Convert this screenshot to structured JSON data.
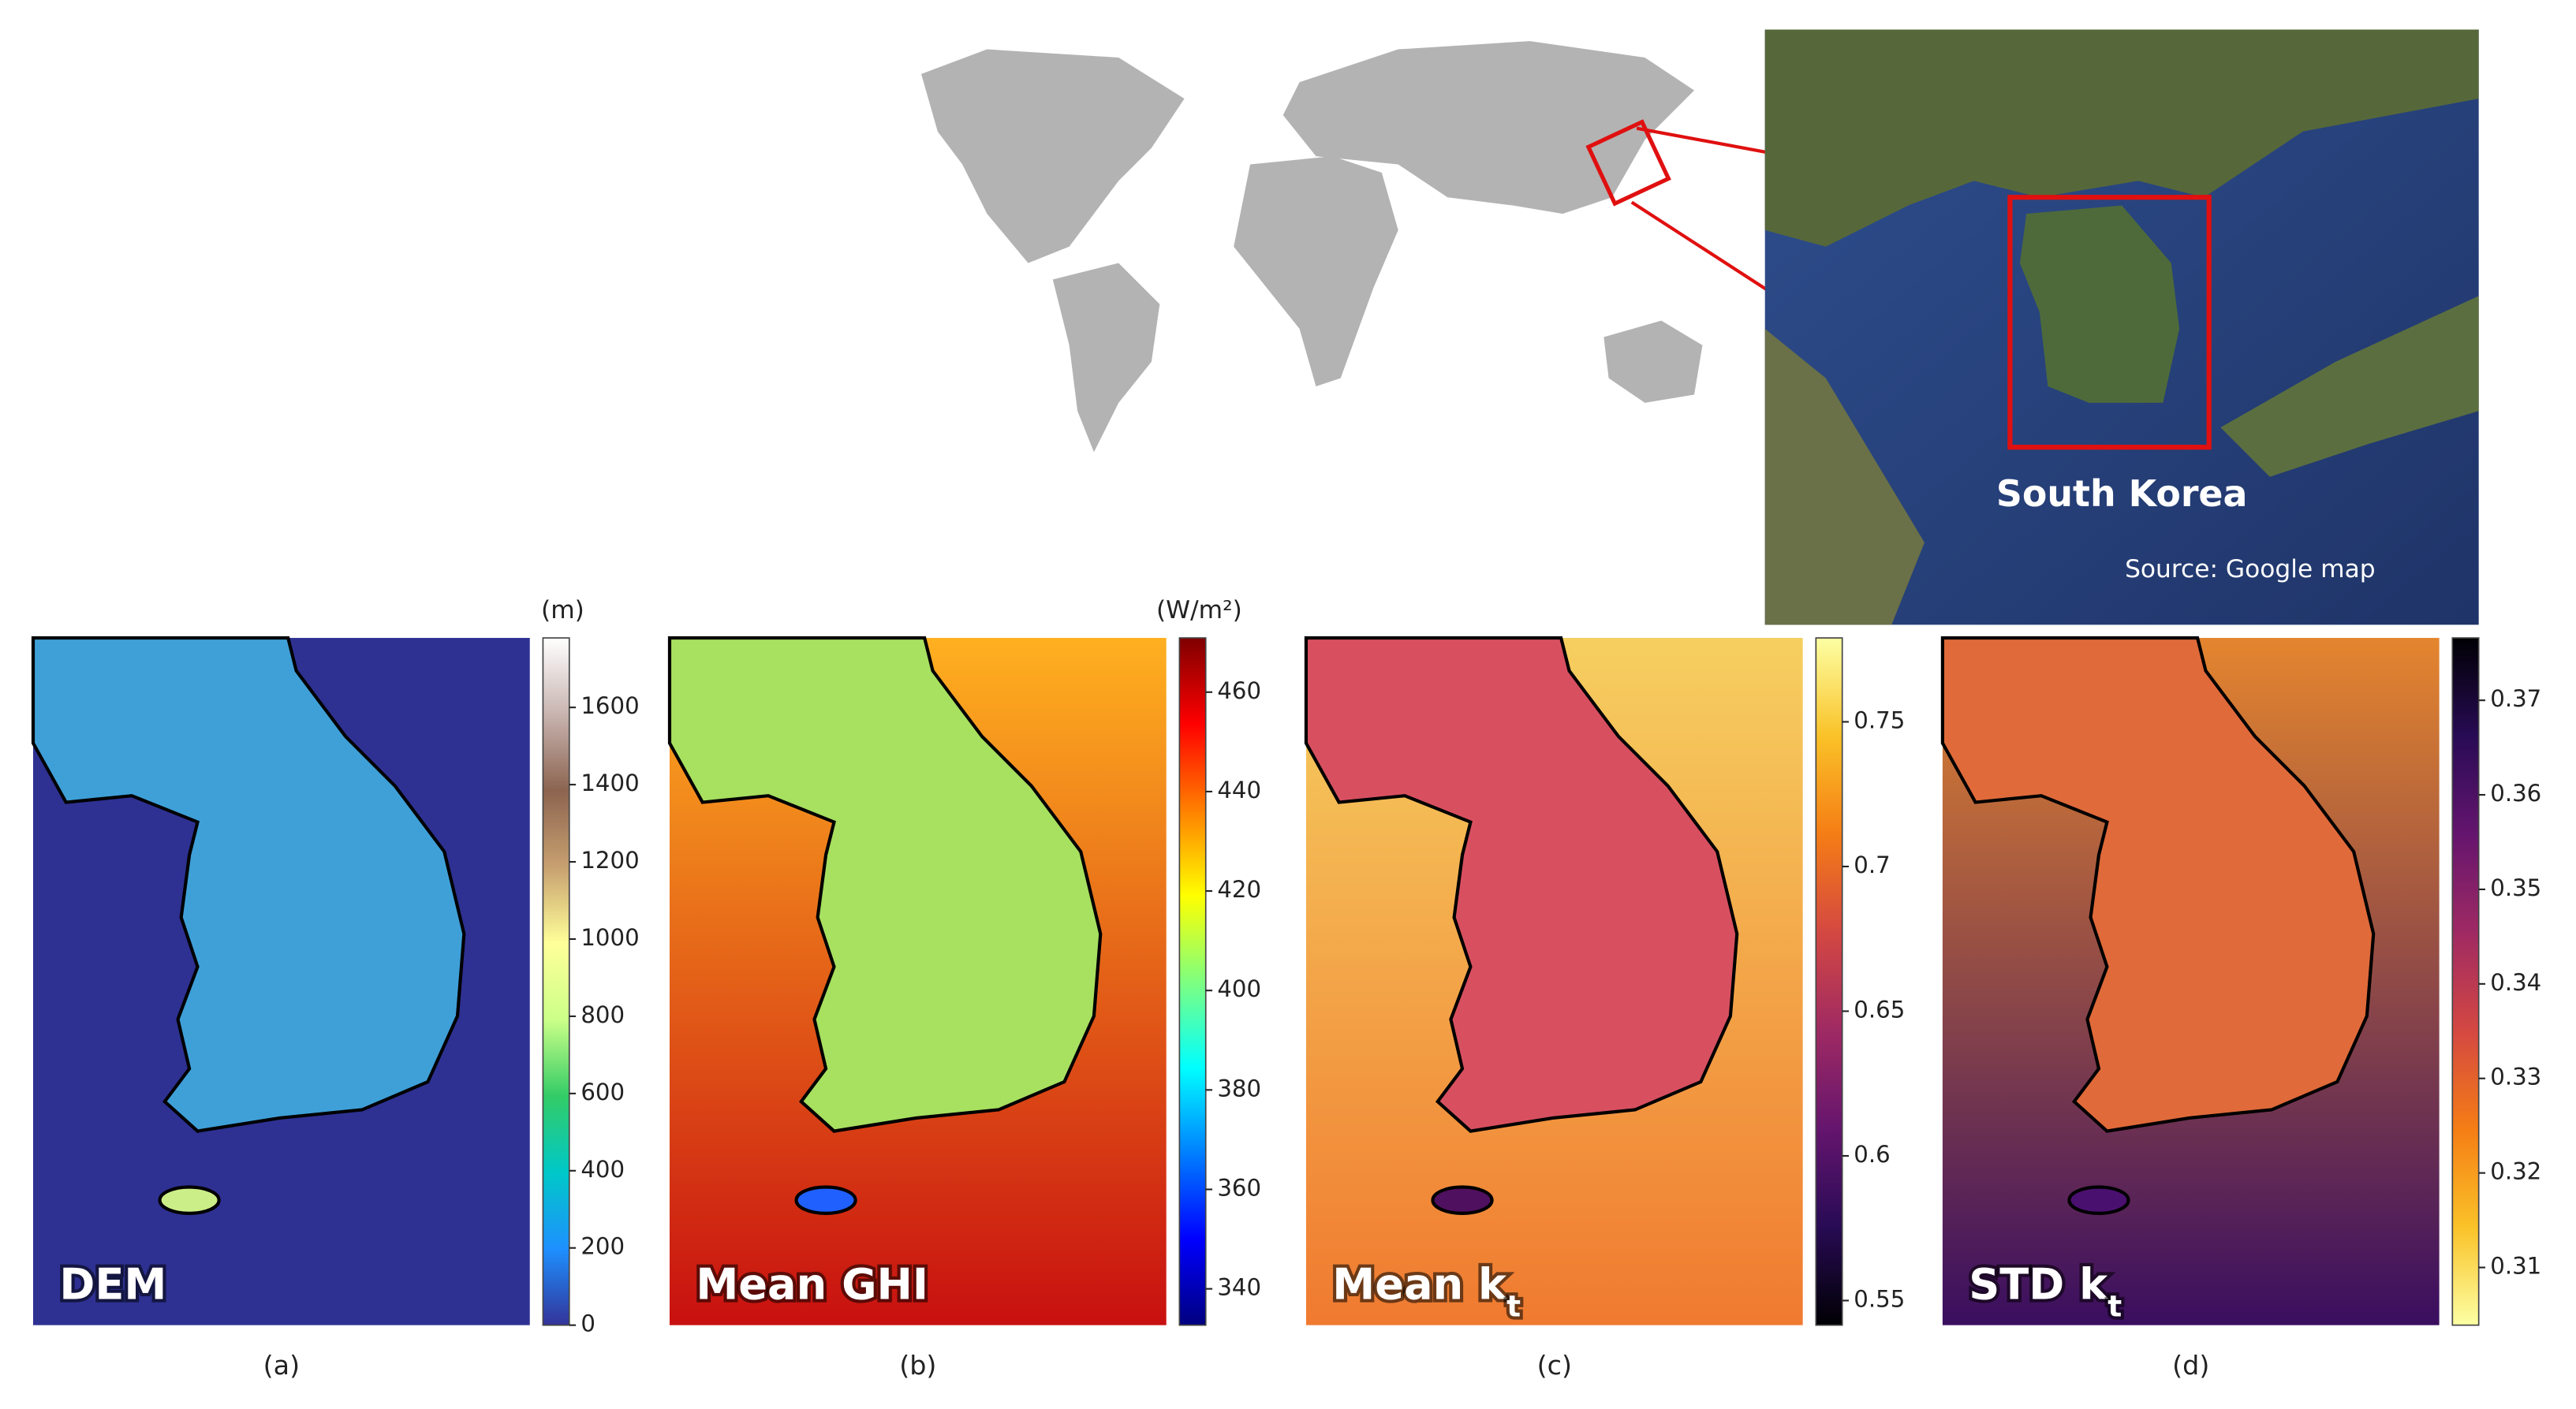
{
  "world_map": {
    "inset_label": "South Korea",
    "source": "Source: Google map"
  },
  "panels": [
    {
      "label": "DEM",
      "caption": "(a)",
      "unit": "(m)",
      "colorbar": {
        "lim": [
          0,
          1780
        ],
        "ticks": [
          0,
          200,
          400,
          600,
          800,
          1000,
          1200,
          1400,
          1600
        ],
        "colormap": [
          "#333399",
          "#1e90ff",
          "#00c8c8",
          "#33cc66",
          "#ccff88",
          "#ffff99",
          "#c8a070",
          "#8c6450",
          "#c8b4b0",
          "#ffffff"
        ]
      }
    },
    {
      "label": "Mean GHI",
      "caption": "(b)",
      "unit": "(W/m²)",
      "colorbar": {
        "lim": [
          332.7,
          470.9
        ],
        "ticks": [
          340,
          360,
          380,
          400,
          420,
          440,
          460
        ],
        "colormap": [
          "#00007f",
          "#0000ff",
          "#007fff",
          "#00ffff",
          "#7fff7f",
          "#ffff00",
          "#ff7f00",
          "#ff0000",
          "#7f0000"
        ]
      }
    },
    {
      "label": "Mean k",
      "label_sub": "t",
      "caption": "(c)",
      "colorbar": {
        "lim": [
          0.5415,
          0.779
        ],
        "ticks": [
          0.55,
          0.6,
          0.65,
          0.7,
          0.75
        ],
        "colormap": [
          "#000004",
          "#280b54",
          "#65156e",
          "#9f2a63",
          "#d44842",
          "#f57d15",
          "#fac228",
          "#fcffa4"
        ]
      }
    },
    {
      "label": "STD k",
      "label_sub": "t",
      "caption": "(d)",
      "colorbar": {
        "lim": [
          0.3039,
          0.3766
        ],
        "ticks": [
          0.31,
          0.32,
          0.33,
          0.34,
          0.35,
          0.36,
          0.37
        ],
        "colormap": [
          "#fcffa4",
          "#fac228",
          "#f57d15",
          "#d44842",
          "#9f2a63",
          "#65156e",
          "#280b54",
          "#000004"
        ]
      }
    }
  ]
}
